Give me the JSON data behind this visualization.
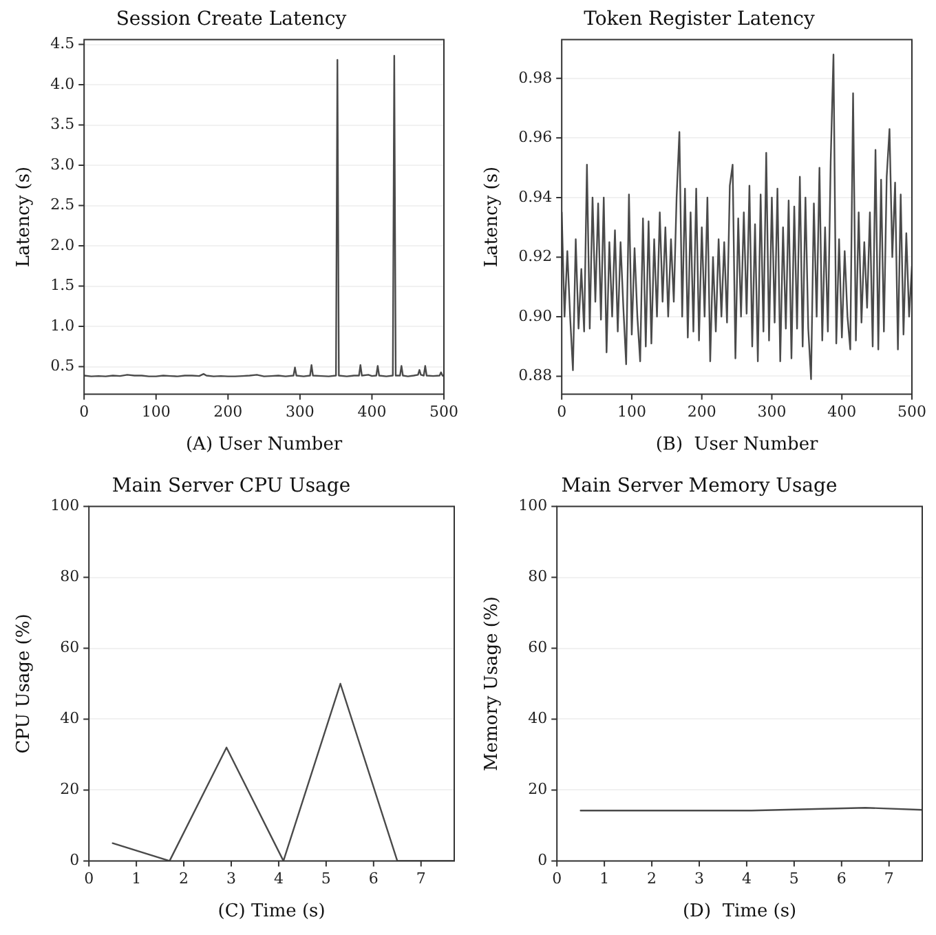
{
  "chart_data": [
    {
      "type": "line",
      "title": "Session Create Latency",
      "xlabel": "(A) User Number",
      "ylabel": "Latency (s)",
      "xlim": [
        0,
        500
      ],
      "xticks": [
        0,
        100,
        200,
        300,
        400,
        500
      ],
      "ylim": [
        0.16,
        4.56
      ],
      "yticks": [
        0.5,
        {
          "value": 1,
          "label": "1.0"
        },
        1.5,
        {
          "value": 2,
          "label": "2.0"
        },
        2.5,
        {
          "value": 3,
          "label": "3.0"
        },
        3.5,
        {
          "value": 4,
          "label": "4.0"
        },
        4.5
      ],
      "grid": "y",
      "legend": false,
      "series": [
        {
          "color": "#4a4a4a",
          "x": [
            0,
            10,
            20,
            30,
            40,
            50,
            60,
            70,
            80,
            90,
            100,
            110,
            120,
            130,
            140,
            150,
            160,
            166,
            170,
            180,
            190,
            200,
            210,
            220,
            230,
            240,
            250,
            260,
            270,
            280,
            291,
            293,
            295,
            305,
            314,
            316,
            318,
            330,
            340,
            350,
            352,
            354,
            365,
            375,
            382,
            384,
            386,
            395,
            400,
            406,
            408,
            410,
            420,
            429,
            431,
            433,
            439,
            441,
            443,
            450,
            458,
            464,
            466,
            468,
            472,
            474,
            476,
            485,
            494,
            496,
            498,
            500
          ],
          "values": [
            0.39,
            0.38,
            0.385,
            0.38,
            0.39,
            0.385,
            0.4,
            0.39,
            0.39,
            0.38,
            0.38,
            0.39,
            0.385,
            0.38,
            0.39,
            0.39,
            0.385,
            0.41,
            0.39,
            0.38,
            0.385,
            0.38,
            0.38,
            0.385,
            0.39,
            0.4,
            0.38,
            0.385,
            0.39,
            0.38,
            0.39,
            0.49,
            0.39,
            0.38,
            0.39,
            0.52,
            0.39,
            0.385,
            0.38,
            0.39,
            4.31,
            0.39,
            0.38,
            0.39,
            0.39,
            0.52,
            0.39,
            0.4,
            0.385,
            0.39,
            0.51,
            0.39,
            0.38,
            0.39,
            4.36,
            0.39,
            0.39,
            0.51,
            0.39,
            0.38,
            0.39,
            0.4,
            0.46,
            0.4,
            0.39,
            0.51,
            0.39,
            0.385,
            0.39,
            0.43,
            0.39,
            0.385
          ]
        }
      ]
    },
    {
      "type": "line",
      "title": "Token Register Latency",
      "xlabel": "(B)  User Number",
      "ylabel": "Latency (s)",
      "xlim": [
        0,
        500
      ],
      "xticks": [
        0,
        100,
        200,
        300,
        400,
        500
      ],
      "ylim": [
        0.874,
        0.993
      ],
      "yticks": [
        0.88,
        {
          "value": 0.9,
          "label": "0.90"
        },
        0.92,
        0.94,
        0.96,
        0.98
      ],
      "grid": "y",
      "legend": false,
      "series": [
        {
          "color": "#4a4a4a",
          "x": [
            0,
            4,
            8,
            12,
            16,
            20,
            24,
            28,
            32,
            36,
            40,
            44,
            48,
            52,
            56,
            60,
            64,
            68,
            72,
            76,
            80,
            84,
            88,
            92,
            96,
            100,
            104,
            108,
            112,
            116,
            120,
            124,
            128,
            132,
            136,
            140,
            144,
            148,
            152,
            156,
            160,
            164,
            168,
            172,
            176,
            180,
            184,
            188,
            192,
            196,
            200,
            204,
            208,
            212,
            216,
            220,
            224,
            228,
            232,
            236,
            240,
            244,
            248,
            252,
            256,
            260,
            264,
            268,
            272,
            276,
            280,
            284,
            288,
            292,
            296,
            300,
            304,
            308,
            312,
            316,
            320,
            324,
            328,
            332,
            336,
            340,
            344,
            348,
            352,
            356,
            360,
            364,
            368,
            372,
            376,
            380,
            384,
            388,
            392,
            396,
            400,
            404,
            408,
            412,
            416,
            420,
            424,
            428,
            432,
            436,
            440,
            444,
            448,
            452,
            456,
            460,
            464,
            468,
            472,
            476,
            480,
            484,
            488,
            492,
            496,
            500
          ],
          "values": [
            0.935,
            0.9,
            0.922,
            0.9,
            0.882,
            0.926,
            0.896,
            0.916,
            0.895,
            0.951,
            0.896,
            0.94,
            0.905,
            0.938,
            0.899,
            0.94,
            0.888,
            0.925,
            0.9,
            0.929,
            0.895,
            0.925,
            0.903,
            0.884,
            0.941,
            0.894,
            0.923,
            0.9,
            0.885,
            0.933,
            0.89,
            0.932,
            0.891,
            0.926,
            0.9,
            0.935,
            0.905,
            0.93,
            0.9,
            0.926,
            0.905,
            0.94,
            0.962,
            0.9,
            0.943,
            0.893,
            0.935,
            0.895,
            0.943,
            0.892,
            0.93,
            0.9,
            0.94,
            0.885,
            0.92,
            0.895,
            0.926,
            0.9,
            0.925,
            0.898,
            0.944,
            0.951,
            0.886,
            0.933,
            0.9,
            0.935,
            0.901,
            0.944,
            0.89,
            0.931,
            0.885,
            0.941,
            0.895,
            0.955,
            0.892,
            0.94,
            0.898,
            0.943,
            0.885,
            0.93,
            0.896,
            0.939,
            0.886,
            0.937,
            0.896,
            0.947,
            0.89,
            0.94,
            0.896,
            0.879,
            0.938,
            0.9,
            0.95,
            0.892,
            0.93,
            0.895,
            0.952,
            0.988,
            0.891,
            0.926,
            0.893,
            0.922,
            0.9,
            0.889,
            0.975,
            0.892,
            0.935,
            0.898,
            0.925,
            0.903,
            0.935,
            0.89,
            0.956,
            0.889,
            0.946,
            0.895,
            0.947,
            0.963,
            0.92,
            0.945,
            0.889,
            0.941,
            0.894,
            0.928,
            0.9,
            0.917
          ]
        }
      ]
    },
    {
      "type": "line",
      "title": "Main Server CPU Usage",
      "xlabel": "(C) Time (s)",
      "ylabel": "CPU Usage (%)",
      "xlim": [
        0,
        7.7
      ],
      "xticks": [
        0,
        1,
        2,
        3,
        4,
        5,
        6,
        7
      ],
      "ylim": [
        0,
        100
      ],
      "yticks": [
        0,
        20,
        40,
        60,
        80,
        100
      ],
      "grid": "y",
      "legend": false,
      "series": [
        {
          "color": "#4a4a4a",
          "x": [
            0.5,
            1.7,
            2.9,
            4.1,
            5.3,
            6.5,
            7.7
          ],
          "values": [
            5,
            0,
            32,
            0,
            50,
            0,
            0
          ]
        }
      ]
    },
    {
      "type": "line",
      "title": "Main Server Memory Usage",
      "xlabel": "(D)  Time (s)",
      "ylabel": "Memory Usage (%)",
      "xlim": [
        0,
        7.7
      ],
      "xticks": [
        0,
        1,
        2,
        3,
        4,
        5,
        6,
        7
      ],
      "ylim": [
        0,
        100
      ],
      "yticks": [
        0,
        20,
        40,
        60,
        80,
        100
      ],
      "grid": "y",
      "legend": false,
      "series": [
        {
          "color": "#4a4a4a",
          "x": [
            0.5,
            4.1,
            6.5,
            7.7
          ],
          "values": [
            14.2,
            14.2,
            15,
            14.4
          ]
        }
      ]
    }
  ]
}
